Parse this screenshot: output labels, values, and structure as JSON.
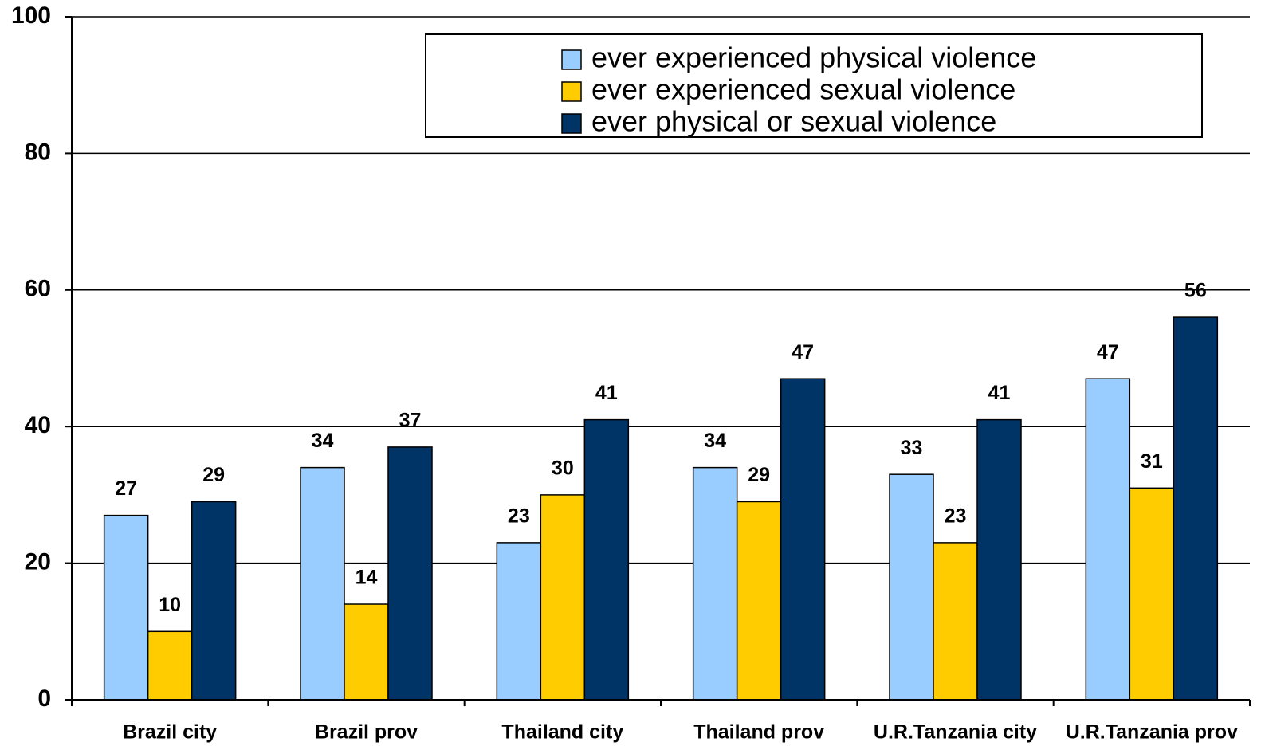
{
  "chart_data": {
    "type": "bar",
    "categories": [
      "Brazil city",
      "Brazil prov",
      "Thailand city",
      "Thailand prov",
      "U.R.Tanzania city",
      "U.R.Tanzania prov"
    ],
    "series": [
      {
        "name": "ever experienced physical violence",
        "color": "#99ccff",
        "values": [
          27,
          34,
          23,
          34,
          33,
          47
        ]
      },
      {
        "name": "ever experienced sexual violence",
        "color": "#ffcc00",
        "values": [
          10,
          14,
          30,
          29,
          23,
          31
        ]
      },
      {
        "name": "ever physical or sexual violence",
        "color": "#003366",
        "values": [
          29,
          37,
          41,
          47,
          41,
          56
        ]
      }
    ],
    "ylim": [
      0,
      100
    ],
    "yticks": [
      0,
      20,
      40,
      60,
      80,
      100
    ],
    "grid": true,
    "legend": "top-right"
  }
}
